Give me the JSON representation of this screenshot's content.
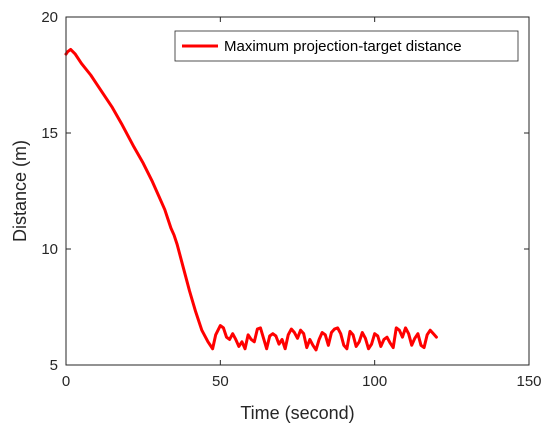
{
  "chart_data": {
    "type": "line",
    "title": "",
    "xlabel": "Time (second)",
    "ylabel": "Distance (m)",
    "xlim": [
      0,
      150
    ],
    "ylim": [
      5,
      20
    ],
    "xticks": [
      0,
      50,
      100,
      150
    ],
    "yticks": [
      5,
      10,
      15,
      20
    ],
    "xtick_labels": [
      "0",
      "50",
      "100",
      "150"
    ],
    "ytick_labels": [
      "5",
      "10",
      "15",
      "20"
    ],
    "grid": false,
    "legend_position": "top-right",
    "series": [
      {
        "name": "Maximum projection-target distance",
        "color": "#ff0000",
        "x": [
          0,
          0.5,
          1.5,
          3,
          5,
          8,
          10,
          12,
          15,
          18,
          20,
          22,
          25,
          28,
          30,
          32,
          33,
          34,
          35,
          36,
          38,
          40,
          42,
          44,
          46,
          47.5,
          48.5,
          50,
          51,
          52,
          53,
          54,
          55,
          56,
          57,
          58,
          59,
          60,
          61,
          62,
          63,
          64,
          65,
          66,
          67,
          68,
          69,
          70,
          71,
          72,
          73,
          74,
          75,
          76,
          77,
          78,
          79,
          80,
          81,
          82,
          83,
          84,
          85,
          86,
          87,
          88,
          89,
          90,
          91,
          92,
          93,
          94,
          95,
          96,
          97,
          98,
          99,
          100,
          101,
          102,
          103,
          104,
          105,
          106,
          107,
          108,
          109,
          110,
          111,
          112,
          113,
          114,
          115,
          116,
          117,
          118,
          119,
          120
        ],
        "y": [
          18.4,
          18.5,
          18.6,
          18.4,
          18.0,
          17.5,
          17.1,
          16.7,
          16.1,
          15.4,
          14.9,
          14.4,
          13.7,
          12.9,
          12.3,
          11.7,
          11.3,
          10.9,
          10.6,
          10.2,
          9.2,
          8.2,
          7.3,
          6.5,
          6.0,
          5.7,
          6.3,
          6.7,
          6.6,
          6.2,
          6.1,
          6.35,
          6.1,
          5.8,
          6.0,
          5.7,
          6.3,
          6.1,
          6.0,
          6.55,
          6.6,
          6.15,
          5.7,
          6.25,
          6.35,
          6.25,
          5.9,
          6.1,
          5.7,
          6.3,
          6.55,
          6.4,
          6.15,
          6.5,
          6.35,
          5.75,
          6.1,
          5.85,
          5.65,
          6.1,
          6.4,
          6.3,
          5.85,
          6.4,
          6.55,
          6.6,
          6.35,
          5.85,
          5.7,
          6.45,
          6.3,
          5.8,
          6.0,
          6.4,
          6.15,
          5.7,
          5.9,
          6.35,
          6.25,
          5.8,
          6.1,
          6.2,
          5.95,
          5.75,
          6.6,
          6.5,
          6.2,
          6.6,
          6.35,
          5.85,
          6.15,
          6.35,
          5.85,
          5.75,
          6.3,
          6.5,
          6.35,
          6.2
        ]
      }
    ]
  }
}
